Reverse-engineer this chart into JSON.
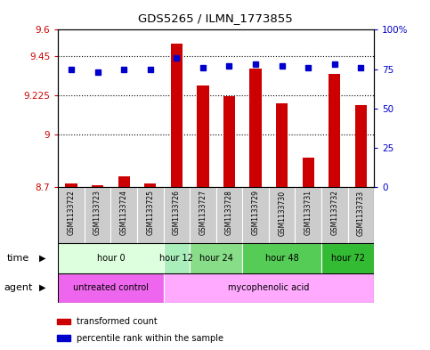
{
  "title": "GDS5265 / ILMN_1773855",
  "samples": [
    "GSM1133722",
    "GSM1133723",
    "GSM1133724",
    "GSM1133725",
    "GSM1133726",
    "GSM1133727",
    "GSM1133728",
    "GSM1133729",
    "GSM1133730",
    "GSM1133731",
    "GSM1133732",
    "GSM1133733"
  ],
  "transformed_counts": [
    8.72,
    8.71,
    8.76,
    8.72,
    9.52,
    9.28,
    9.22,
    9.38,
    9.18,
    8.87,
    9.35,
    9.17
  ],
  "percentile_ranks": [
    75,
    73,
    75,
    75,
    82,
    76,
    77,
    78,
    77,
    76,
    78,
    76
  ],
  "ylim_left": [
    8.7,
    9.6
  ],
  "ylim_right": [
    0,
    100
  ],
  "yticks_left": [
    8.7,
    9.0,
    9.225,
    9.45,
    9.6
  ],
  "ytick_labels_left": [
    "8.7",
    "9",
    "9.225",
    "9.45",
    "9.6"
  ],
  "yticks_right": [
    0,
    25,
    50,
    75,
    100
  ],
  "ytick_labels_right": [
    "0",
    "25",
    "50",
    "75",
    "100%"
  ],
  "hlines": [
    9.45,
    9.225,
    9.0
  ],
  "bar_color": "#cc0000",
  "dot_color": "#0000cc",
  "time_groups": [
    {
      "label": "hour 0",
      "start": 0,
      "end": 3,
      "color": "#ddffdd"
    },
    {
      "label": "hour 12",
      "start": 4,
      "end": 4,
      "color": "#aaeebb"
    },
    {
      "label": "hour 24",
      "start": 5,
      "end": 6,
      "color": "#88dd88"
    },
    {
      "label": "hour 48",
      "start": 7,
      "end": 9,
      "color": "#55cc55"
    },
    {
      "label": "hour 72",
      "start": 10,
      "end": 11,
      "color": "#33bb33"
    }
  ],
  "agent_groups": [
    {
      "label": "untreated control",
      "start": 0,
      "end": 3,
      "color": "#ee66ee"
    },
    {
      "label": "mycophenolic acid",
      "start": 4,
      "end": 11,
      "color": "#ffaaff"
    }
  ],
  "legend_items": [
    {
      "color": "#cc0000",
      "label": "transformed count"
    },
    {
      "color": "#0000cc",
      "label": "percentile rank within the sample"
    }
  ],
  "left_axis_color": "#cc0000",
  "right_axis_color": "#0000cc",
  "background_color": "#ffffff",
  "plot_bg_color": "#ffffff",
  "grid_color": "#000000",
  "bar_bottom": 8.7,
  "sample_bg_color": "#cccccc",
  "border_color": "#000000"
}
